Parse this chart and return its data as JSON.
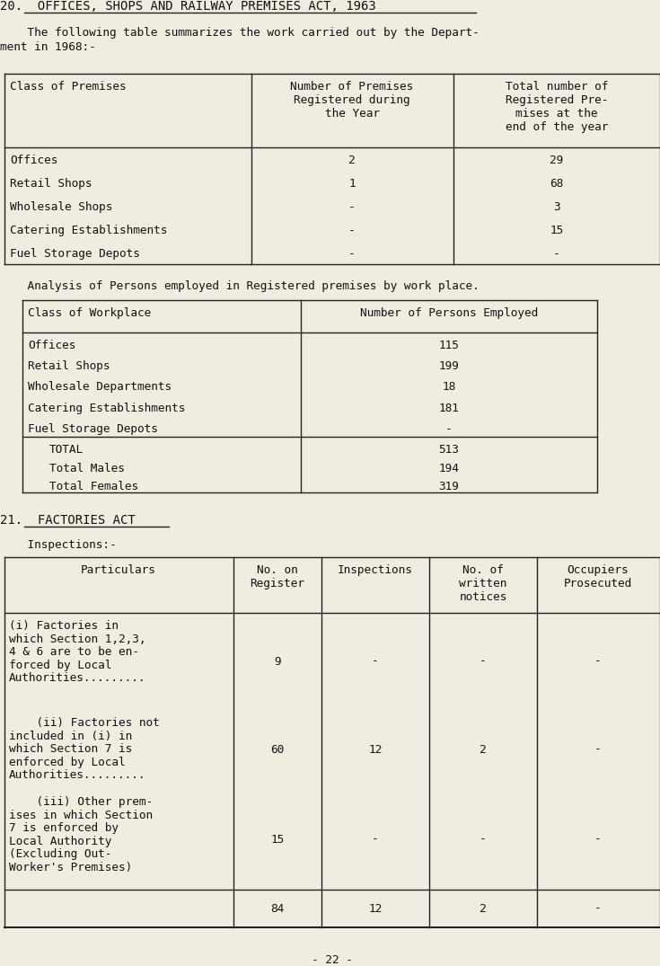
{
  "bg_color": "#f0ede0",
  "title_section": "20.  OFFICES, SHOPS AND RAILWAY PREMISES ACT, 1963",
  "intro_line1": "    The following table summarizes the work carried out by the Depart-",
  "intro_line2": "ment in 1968:-",
  "table1_col_headers": [
    "Class of Premises",
    "Number of Premises\nRegistered during\nthe Year",
    "Total number of\nRegistered Pre-\nmises at the\nend of the year"
  ],
  "table1_rows": [
    [
      "Offices",
      "2",
      "29"
    ],
    [
      "Retail Shops",
      "1",
      "68"
    ],
    [
      "Wholesale Shops",
      "-",
      "3"
    ],
    [
      "Catering Establishments",
      "-",
      "15"
    ],
    [
      "Fuel Storage Depots",
      "-",
      "-"
    ]
  ],
  "analysis_text": "    Analysis of Persons employed in Registered premises by work place.",
  "table2_col_headers": [
    "Class of Workplace",
    "Number of Persons Employed"
  ],
  "table2_rows": [
    [
      "Offices",
      "115"
    ],
    [
      "Retail Shops",
      "199"
    ],
    [
      "Wholesale Departments",
      "18"
    ],
    [
      "Catering Establishments",
      "181"
    ],
    [
      "Fuel Storage Depots",
      "-"
    ]
  ],
  "table2_totals": [
    [
      "TOTAL",
      "513"
    ],
    [
      "Total Males",
      "194"
    ],
    [
      "Total Females",
      "319"
    ]
  ],
  "section21_title": "21.  FACTORIES ACT",
  "inspections_label": "    Inspections:-",
  "table3_col_headers": [
    "Particulars",
    "No. on\nRegister",
    "Inspections",
    "No. of\nwritten\nnotices",
    "Occupiers\nProsecuted"
  ],
  "table3_row1_lines": [
    "(i) Factories in",
    "which Section 1,2,3,",
    "4 & 6 are to be en-",
    "forced by Local",
    "Authorities........."
  ],
  "table3_row1_vals": [
    "9",
    "-",
    "-",
    "-"
  ],
  "table3_row2_lines": [
    "    (ii) Factories not",
    "included in (i) in",
    "which Section 7 is",
    "enforced by Local",
    "Authorities........."
  ],
  "table3_row2_vals": [
    "60",
    "12",
    "2",
    "-"
  ],
  "table3_row3_lines": [
    "    (iii) Other prem-",
    "ises in which Section",
    "7 is enforced by",
    "Local Authority",
    "(Excluding Out-",
    "Worker's Premises)"
  ],
  "table3_row3_vals": [
    "15",
    "-",
    "-",
    "-"
  ],
  "table3_total_vals": [
    "84",
    "12",
    "2",
    "-"
  ],
  "page_number": "- 22 -"
}
